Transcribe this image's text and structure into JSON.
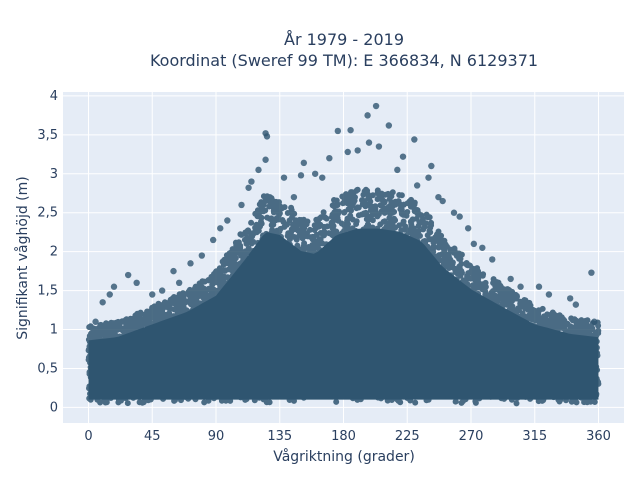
{
  "chart_data": {
    "type": "scatter",
    "title": "År 1979 - 2019",
    "subtitle": "Koordinat (Sweref 99 TM): E 366834, N 6129371",
    "xlabel": "Vågriktning (grader)",
    "ylabel": "Signifikant våghöjd (m)",
    "xlim": [
      -18,
      378
    ],
    "ylim": [
      -0.2,
      4.05
    ],
    "xticks": [
      0,
      45,
      90,
      135,
      180,
      225,
      270,
      315,
      360
    ],
    "yticks": [
      0,
      0.5,
      1,
      1.5,
      2,
      2.5,
      3,
      3.5,
      4
    ],
    "xtick_labels": [
      "0",
      "45",
      "90",
      "135",
      "180",
      "225",
      "270",
      "315",
      "360"
    ],
    "ytick_labels": [
      "0",
      "0,5",
      "1",
      "1,5",
      "2",
      "2,5",
      "3",
      "3,5",
      "4"
    ],
    "grid": true,
    "legend": "none",
    "colors": {
      "marker": "#2f5570",
      "plot_bg": "#e5ecf6",
      "grid": "#ffffff",
      "text": "#2a3f5f"
    },
    "envelope": {
      "x": [
        0,
        20,
        45,
        70,
        90,
        110,
        125,
        135,
        150,
        160,
        175,
        190,
        205,
        220,
        235,
        250,
        270,
        290,
        315,
        340,
        360
      ],
      "max_hs": [
        1.05,
        1.1,
        1.3,
        1.5,
        1.75,
        2.3,
        2.75,
        2.7,
        2.45,
        2.4,
        2.7,
        2.8,
        2.8,
        2.75,
        2.6,
        2.2,
        1.85,
        1.6,
        1.3,
        1.15,
        1.1
      ]
    },
    "outliers": [
      {
        "x": 203,
        "y": 3.87
      },
      {
        "x": 125,
        "y": 3.52
      },
      {
        "x": 126,
        "y": 3.48
      },
      {
        "x": 197,
        "y": 3.75
      },
      {
        "x": 185,
        "y": 3.56
      },
      {
        "x": 176,
        "y": 3.55
      },
      {
        "x": 212,
        "y": 3.62
      },
      {
        "x": 230,
        "y": 3.44
      },
      {
        "x": 205,
        "y": 3.35
      },
      {
        "x": 170,
        "y": 3.2
      },
      {
        "x": 152,
        "y": 3.14
      },
      {
        "x": 242,
        "y": 3.1
      },
      {
        "x": 198,
        "y": 3.4
      },
      {
        "x": 190,
        "y": 3.3
      },
      {
        "x": 222,
        "y": 3.22
      },
      {
        "x": 183,
        "y": 3.28
      },
      {
        "x": 160,
        "y": 3.0
      },
      {
        "x": 150,
        "y": 2.98
      },
      {
        "x": 240,
        "y": 2.95
      },
      {
        "x": 218,
        "y": 3.05
      },
      {
        "x": 125,
        "y": 3.18
      },
      {
        "x": 120,
        "y": 3.05
      },
      {
        "x": 115,
        "y": 2.9
      },
      {
        "x": 250,
        "y": 2.65
      },
      {
        "x": 258,
        "y": 2.5
      },
      {
        "x": 262,
        "y": 2.45
      },
      {
        "x": 272,
        "y": 2.1
      },
      {
        "x": 285,
        "y": 1.9
      },
      {
        "x": 98,
        "y": 2.4
      },
      {
        "x": 93,
        "y": 2.3
      },
      {
        "x": 88,
        "y": 2.15
      },
      {
        "x": 80,
        "y": 1.95
      },
      {
        "x": 72,
        "y": 1.85
      },
      {
        "x": 60,
        "y": 1.75
      },
      {
        "x": 45,
        "y": 1.45
      },
      {
        "x": 28,
        "y": 1.7
      },
      {
        "x": 34,
        "y": 1.6
      },
      {
        "x": 18,
        "y": 1.55
      },
      {
        "x": 15,
        "y": 1.45
      },
      {
        "x": 10,
        "y": 1.35
      },
      {
        "x": 5,
        "y": 1.1
      },
      {
        "x": 298,
        "y": 1.65
      },
      {
        "x": 305,
        "y": 1.55
      },
      {
        "x": 318,
        "y": 1.55
      },
      {
        "x": 325,
        "y": 1.45
      },
      {
        "x": 340,
        "y": 1.4
      },
      {
        "x": 344,
        "y": 1.32
      },
      {
        "x": 355,
        "y": 1.73
      },
      {
        "x": 357,
        "y": 1.1
      },
      {
        "x": 108,
        "y": 2.6
      },
      {
        "x": 113,
        "y": 2.82
      },
      {
        "x": 138,
        "y": 2.95
      },
      {
        "x": 145,
        "y": 2.7
      },
      {
        "x": 165,
        "y": 2.95
      },
      {
        "x": 232,
        "y": 2.85
      },
      {
        "x": 247,
        "y": 2.7
      },
      {
        "x": 268,
        "y": 2.3
      },
      {
        "x": 278,
        "y": 2.05
      },
      {
        "x": 52,
        "y": 1.5
      },
      {
        "x": 64,
        "y": 1.6
      }
    ]
  }
}
